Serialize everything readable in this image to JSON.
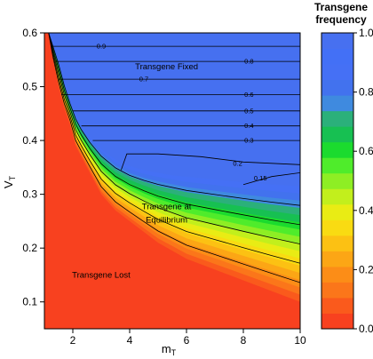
{
  "chart_data": {
    "type": "heatmap",
    "title": "",
    "xlabel": "m",
    "xlabel_sub": "T",
    "ylabel": "V",
    "ylabel_sub": "T",
    "xlim": [
      1,
      10
    ],
    "ylim": [
      0.05,
      0.6
    ],
    "x_ticks": [
      2,
      4,
      6,
      8,
      10
    ],
    "y_ticks": [
      0.1,
      0.2,
      0.3,
      0.4,
      0.5,
      0.6
    ],
    "colorbar": {
      "title_line1": "Transgene",
      "title_line2": "frequency",
      "range": [
        0,
        1
      ],
      "ticks": [
        "0.0",
        "0.2",
        "0.4",
        "0.6",
        "0.8",
        "1.0"
      ],
      "bands": [
        "#f8411f",
        "#fa5a1c",
        "#fb761a",
        "#fc8d17",
        "#fca615",
        "#fcc113",
        "#f9db12",
        "#e9ec14",
        "#c2ef1c",
        "#8eee24",
        "#4fec2b",
        "#1bdb2e",
        "#17c052",
        "#2bb07a",
        "#3f8adf",
        "#4272ee",
        "#4570f5",
        "#4370f6",
        "#4770f0"
      ]
    },
    "colors": {
      "lost": "#f8411f",
      "fixed": "#4670f0"
    },
    "lower_boundary": {
      "m": [
        1.15,
        1.3,
        1.5,
        1.7,
        1.9,
        2.1,
        2.3,
        2.6,
        3.0,
        3.5,
        4.0,
        4.5,
        5.0,
        6.0,
        7.0,
        8.0,
        9.0,
        10.0
      ],
      "v": [
        0.6,
        0.55,
        0.5,
        0.46,
        0.43,
        0.39,
        0.37,
        0.34,
        0.3,
        0.27,
        0.25,
        0.23,
        0.21,
        0.18,
        0.16,
        0.14,
        0.12,
        0.1
      ]
    },
    "upper_boundary": {
      "m": [
        1.15,
        1.3,
        1.5,
        1.7,
        2.0,
        2.3,
        2.7,
        3.2,
        3.8,
        4.5,
        5.5,
        6.5,
        7.5,
        8.5,
        10.0
      ],
      "v": [
        0.6,
        0.58,
        0.55,
        0.51,
        0.46,
        0.43,
        0.4,
        0.375,
        0.355,
        0.345,
        0.335,
        0.33,
        0.325,
        0.32,
        0.315
      ]
    },
    "contour_lines": [
      {
        "level": "0.9",
        "label_m": 3.0,
        "label_v": 0.575,
        "m": [
          1.3,
          10.0
        ],
        "v": [
          0.575,
          0.575
        ]
      },
      {
        "level": "0.8",
        "label_m": 8.2,
        "label_v": 0.547,
        "m": [
          1.4,
          10.0
        ],
        "v": [
          0.547,
          0.547
        ]
      },
      {
        "level": "0.7",
        "label_m": 4.5,
        "label_v": 0.514,
        "m": [
          1.5,
          10.0
        ],
        "v": [
          0.514,
          0.514
        ]
      },
      {
        "level": "0.6",
        "label_m": 8.2,
        "label_v": 0.485,
        "m": [
          1.6,
          10.0
        ],
        "v": [
          0.485,
          0.485
        ]
      },
      {
        "level": "0.5",
        "label_m": 8.2,
        "label_v": 0.455,
        "m": [
          2.0,
          10.0
        ],
        "v": [
          0.455,
          0.455
        ]
      },
      {
        "level": "0.4",
        "label_m": 8.2,
        "label_v": 0.427,
        "m": [
          2.3,
          10.0
        ],
        "v": [
          0.427,
          0.427
        ]
      },
      {
        "level": "0.3",
        "label_m": 8.2,
        "label_v": 0.4,
        "m": [
          2.7,
          10.0
        ],
        "v": [
          0.4,
          0.4
        ]
      },
      {
        "level": "0.2",
        "label_m": 7.8,
        "label_v": 0.357,
        "m": [
          3.7,
          3.9,
          5.0,
          6.5,
          8.0,
          10.0
        ],
        "v": [
          0.345,
          0.375,
          0.375,
          0.37,
          0.36,
          0.355
        ]
      },
      {
        "level": "0.15",
        "label_m": 8.6,
        "label_v": 0.33,
        "m": [
          8.0,
          9.0,
          10.0
        ],
        "v": [
          0.318,
          0.333,
          0.34
        ]
      }
    ],
    "region_labels": [
      {
        "text": "Transgene Fixed",
        "m": 5.3,
        "v": 0.532
      },
      {
        "text": "Transgene at",
        "m": 5.3,
        "v": 0.272
      },
      {
        "text": "Equilibrium",
        "m": 5.3,
        "v": 0.247
      },
      {
        "text": "Transgene Lost",
        "m": 3.0,
        "v": 0.145
      }
    ]
  }
}
